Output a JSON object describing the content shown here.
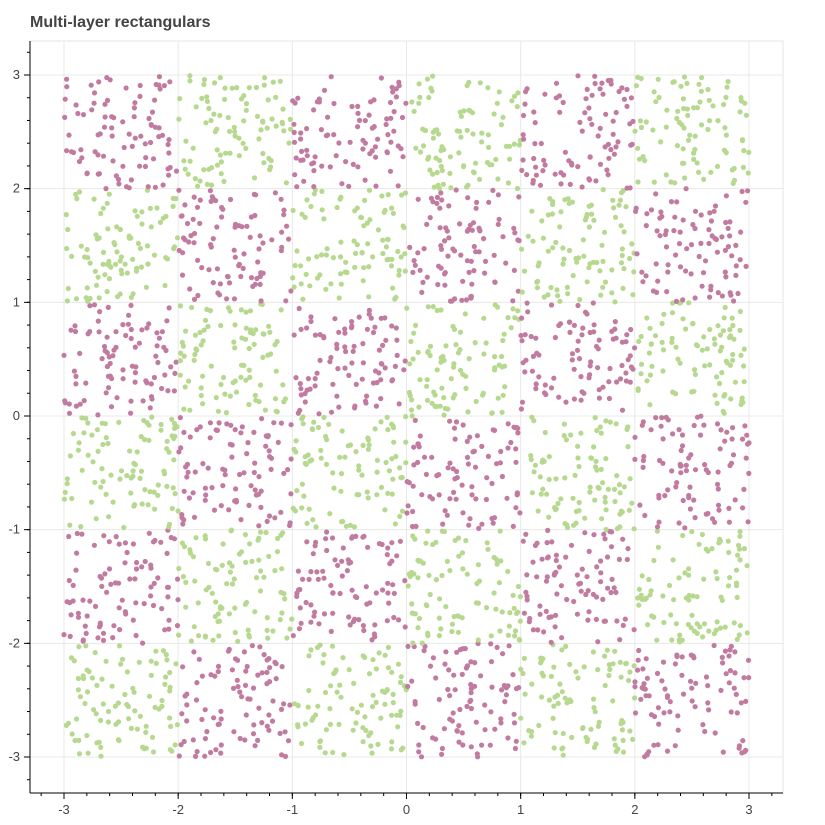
{
  "chart_data": {
    "type": "scatter",
    "title": "Multi-layer rectangulars",
    "xlabel": "",
    "ylabel": "",
    "xlim": [
      -3.3,
      3.3
    ],
    "ylim": [
      -3.3,
      3.3
    ],
    "xticks": [
      -3,
      -2,
      -1,
      0,
      1,
      2,
      3
    ],
    "yticks": [
      -3,
      -2,
      -1,
      0,
      1,
      2,
      3
    ],
    "xtick_labels": [
      "-3",
      "-2",
      "-1",
      "0",
      "1",
      "2",
      "3"
    ],
    "ytick_labels": [
      "-3",
      "-2",
      "-1",
      "0",
      "1",
      "2",
      "3"
    ],
    "grid": true,
    "legend": "none",
    "grid_cells": {
      "x_edges": [
        -3,
        -2,
        -1,
        0,
        1,
        2,
        3
      ],
      "y_edges": [
        -3,
        -2,
        -1,
        0,
        1,
        2,
        3
      ],
      "pattern": "checkerboard",
      "points_per_cell": 90,
      "note_top_left_cell_color": "purple"
    },
    "series": [
      {
        "color": "#c27ba0"
      },
      {
        "color": "#b6d98f"
      }
    ]
  }
}
